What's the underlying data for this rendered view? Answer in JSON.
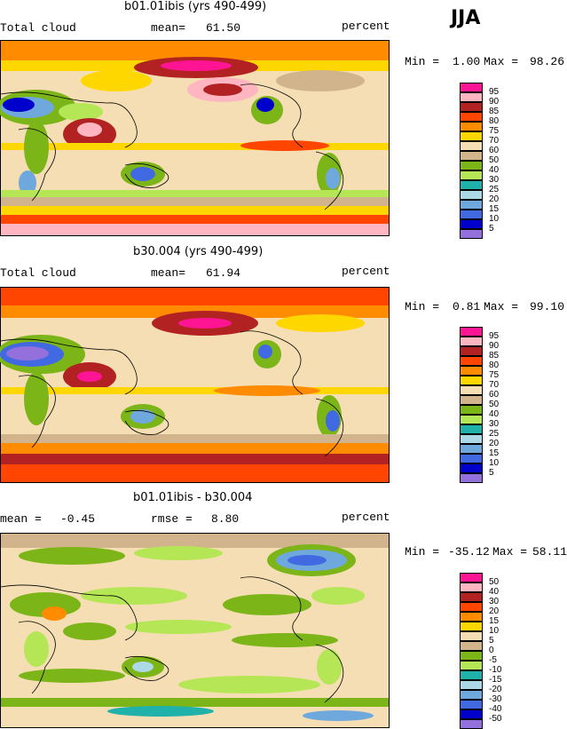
{
  "season": "JJA",
  "panels": [
    {
      "title": "b01.01ibis (yrs 490-499)",
      "left_label": "Total cloud",
      "mean_label": "mean=",
      "mean_value": "61.50",
      "units": "percent",
      "min_label": "Min =",
      "min_value": "1.00",
      "max_label": "Max =",
      "max_value": "98.26"
    },
    {
      "title": "b30.004 (yrs 490-499)",
      "left_label": "Total cloud",
      "mean_label": "mean=",
      "mean_value": "61.94",
      "units": "percent",
      "min_label": "Min =",
      "min_value": "0.81",
      "max_label": "Max =",
      "max_value": "99.10"
    },
    {
      "title": "b01.01ibis - b30.004",
      "left_label": "mean =",
      "left_value": "-0.45",
      "mean_label": "rmse =",
      "mean_value": "8.80",
      "units": "percent",
      "min_label": "Min =",
      "min_value": "-35.12",
      "max_label": "Max =",
      "max_value": "58.11"
    }
  ],
  "legend_abs": {
    "labels": [
      "95",
      "90",
      "85",
      "80",
      "75",
      "70",
      "60",
      "50",
      "40",
      "30",
      "25",
      "20",
      "15",
      "10",
      "5"
    ],
    "colors": [
      "#ff1493",
      "#ffb6c1",
      "#b22222",
      "#ff4500",
      "#ff8c00",
      "#ffd700",
      "#f5deb3",
      "#d2b48c",
      "#7cb518",
      "#b5e655",
      "#20b2aa",
      "#add8e6",
      "#6fa8dc",
      "#4169e1",
      "#0000cd",
      "#9370db"
    ]
  },
  "legend_diff": {
    "labels": [
      "50",
      "40",
      "30",
      "20",
      "15",
      "10",
      "5",
      "0",
      "-5",
      "-10",
      "-15",
      "-20",
      "-30",
      "-40",
      "-50"
    ],
    "colors": [
      "#ff1493",
      "#ffb6c1",
      "#b22222",
      "#ff4500",
      "#ff8c00",
      "#ffd700",
      "#f5deb3",
      "#d2b48c",
      "#7cb518",
      "#b5e655",
      "#20b2aa",
      "#add8e6",
      "#6fa8dc",
      "#4169e1",
      "#0000cd",
      "#9370db"
    ]
  }
}
